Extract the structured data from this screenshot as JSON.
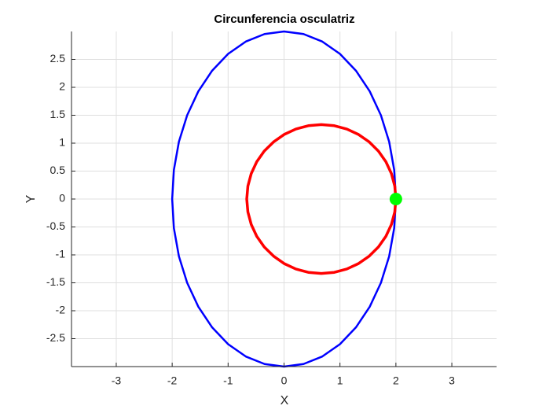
{
  "chart_data": {
    "type": "line",
    "title": "Circunferencia osculatriz",
    "x_label": "X",
    "y_label": "Y",
    "xlim": [
      -3.8,
      3.8
    ],
    "ylim": [
      -3,
      3
    ],
    "xticks": [
      -3,
      -2,
      -1,
      0,
      1,
      2,
      3
    ],
    "yticks": [
      -2.5,
      -2,
      -1.5,
      -1,
      -0.5,
      0,
      0.5,
      1,
      1.5,
      2,
      2.5
    ],
    "grid": true,
    "series": [
      {
        "color": "#0000ff",
        "style": "line",
        "x": [
          2,
          1.9696,
          1.8794,
          1.7321,
          1.5321,
          1.2856,
          1,
          0.684,
          0.3473,
          0,
          -0.3473,
          -0.684,
          -1,
          -1.2856,
          -1.5321,
          -1.7321,
          -1.8794,
          -1.9696,
          -2,
          -1.9696,
          -1.8794,
          -1.7321,
          -1.5321,
          -1.2856,
          -1,
          -0.684,
          -0.3473,
          0,
          0.3473,
          0.684,
          1,
          1.2856,
          1.5321,
          1.7321,
          1.8794,
          1.9696,
          2
        ],
        "values": [
          0,
          0.5209,
          1.0261,
          1.5,
          1.9284,
          2.2981,
          2.5981,
          2.8191,
          2.9544,
          3,
          2.9544,
          2.8191,
          2.5981,
          2.2981,
          1.9284,
          1.5,
          1.0261,
          0.5209,
          0,
          -0.5209,
          -1.0261,
          -1.5,
          -1.9284,
          -2.2981,
          -2.5981,
          -2.8191,
          -2.9544,
          -3,
          -2.9544,
          -2.8191,
          -2.5981,
          -2.2981,
          -1.9284,
          -1.5,
          -1.0261,
          -0.5209,
          0
        ]
      },
      {
        "color": "#ff0000",
        "style": "line",
        "x": [
          2,
          1.9798,
          1.9196,
          1.8214,
          1.6881,
          1.5237,
          1.3333,
          1.1227,
          0.8982,
          0.6667,
          0.4352,
          0.2107,
          0,
          -0.188,
          -0.3547,
          -0.488,
          -0.5862,
          -0.6464,
          -0.6667,
          -0.6464,
          -0.5862,
          -0.488,
          -0.3547,
          -0.188,
          0,
          0.2107,
          0.4352,
          0.6667,
          0.8982,
          1.1227,
          1.3333,
          1.5237,
          1.6881,
          1.8214,
          1.9196,
          1.9798,
          2
        ],
        "values": [
          0,
          0.2315,
          0.456,
          0.6667,
          0.857,
          1.0214,
          1.1547,
          1.2529,
          1.3131,
          1.3333,
          1.3131,
          1.2529,
          1.1547,
          1.0214,
          0.857,
          0.6667,
          0.456,
          0.2315,
          0,
          -0.2315,
          -0.456,
          -0.6667,
          -0.857,
          -1.0214,
          -1.1547,
          -1.2529,
          -1.3131,
          -1.3333,
          -1.3131,
          -1.2529,
          -1.1547,
          -1.0214,
          -0.857,
          -0.6667,
          -0.456,
          -0.2315,
          0
        ]
      },
      {
        "color": "#00ff00",
        "style": "marker",
        "x": [
          2
        ],
        "values": [
          0
        ]
      }
    ]
  }
}
